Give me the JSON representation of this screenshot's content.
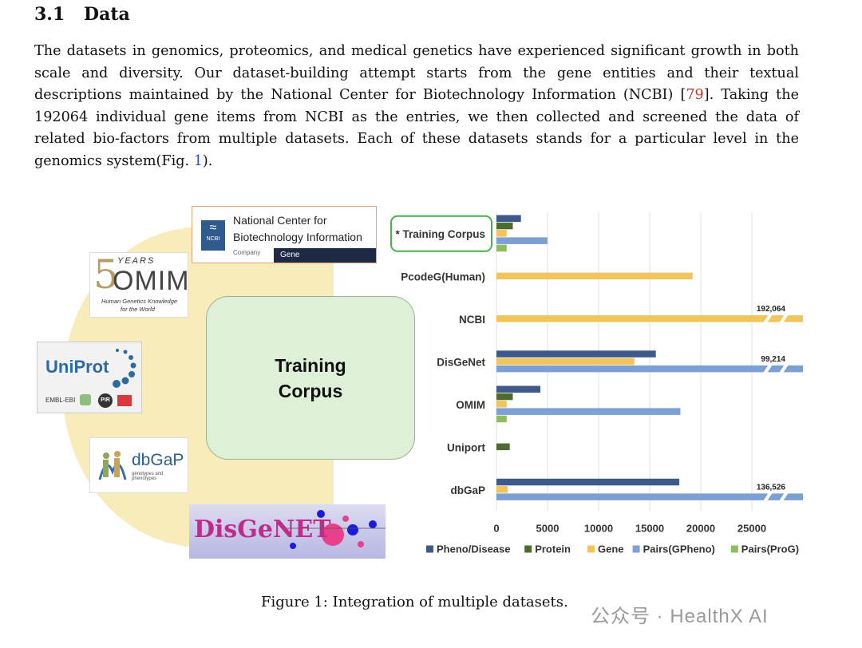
{
  "section": {
    "number": "3.1",
    "title": "Data"
  },
  "paragraph": {
    "text_1": "The datasets in genomics, proteomics, and medical genetics have experienced significant growth in both scale and diversity. Our dataset-building attempt starts from the gene entities and their textual descriptions maintained by the National Center for Biotechnology Information (NCBI) [",
    "ref_1": "79",
    "text_2": "]. Taking the 192064 individual gene items from NCBI as the entries, we then collected and screened the data of related bio-factors from multiple datasets. Each of these datasets stands for a particular level in the genomics system(Fig. ",
    "ref_2": "1",
    "text_3": ")."
  },
  "figure": {
    "ncbi_logo": {
      "line1": "National Center for",
      "line2": "Biotechnology Information",
      "company": "Company",
      "tag": "Gene",
      "icon_text": "NCBI"
    },
    "omim_logo": {
      "years": "YEARS",
      "digit": "5",
      "name": "OMIM",
      "tagline1": "Human Genetics Knowledge",
      "tagline2": "for the World"
    },
    "uniprot_logo": {
      "name": "UniProt",
      "partner1": "EMBL-EBI",
      "partner2": "PIR"
    },
    "dbgap_logo": {
      "name": "dbGaP",
      "tagline": "genotypes and phenotypes"
    },
    "disgenet_logo": {
      "name": "DisGeNET"
    },
    "center_label_line1": "Training",
    "center_label_line2": "Corpus",
    "caption": "Figure 1: Integration of multiple datasets."
  },
  "watermark": "公众号 · HealthX AI",
  "chart_data": {
    "type": "bar",
    "orientation": "horizontal",
    "categories": [
      "* Training Corpus",
      "PcodeG(Human)",
      "NCBI",
      "DisGeNet",
      "OMIM",
      "Uniport",
      "dbGaP"
    ],
    "series": [
      {
        "name": "Pheno/Disease",
        "color": "#3d5a8a",
        "values": [
          2400,
          null,
          null,
          15600,
          4300,
          null,
          17900
        ]
      },
      {
        "name": "Protein",
        "color": "#4e6b2e",
        "values": [
          1600,
          null,
          null,
          null,
          1600,
          1300,
          null
        ]
      },
      {
        "name": "Gene",
        "color": "#f2c55c",
        "values": [
          1000,
          19200,
          192064,
          13500,
          1000,
          null,
          1100
        ]
      },
      {
        "name": "Pairs(GPheno)",
        "color": "#7da0d4",
        "values": [
          5000,
          null,
          null,
          99214,
          18000,
          null,
          136526
        ]
      },
      {
        "name": "Pairs(ProG)",
        "color": "#8fbc5f",
        "values": [
          1000,
          null,
          null,
          null,
          1000,
          null,
          null
        ]
      }
    ],
    "data_labels": [
      {
        "category": "NCBI",
        "series": "Gene",
        "text": "192,064"
      },
      {
        "category": "DisGeNet",
        "series": "Pairs(GPheno)",
        "text": "99,214"
      },
      {
        "category": "dbGaP",
        "series": "Pairs(GPheno)",
        "text": "136,526"
      }
    ],
    "x_ticks": [
      "0",
      "5000",
      "10000",
      "15000",
      "20000",
      "25000"
    ],
    "xlim": [
      0,
      30000
    ],
    "axis_break": true,
    "grid": true,
    "legend": "bottom",
    "highlight_category": "* Training Corpus",
    "highlight_color": "#4caf50"
  }
}
